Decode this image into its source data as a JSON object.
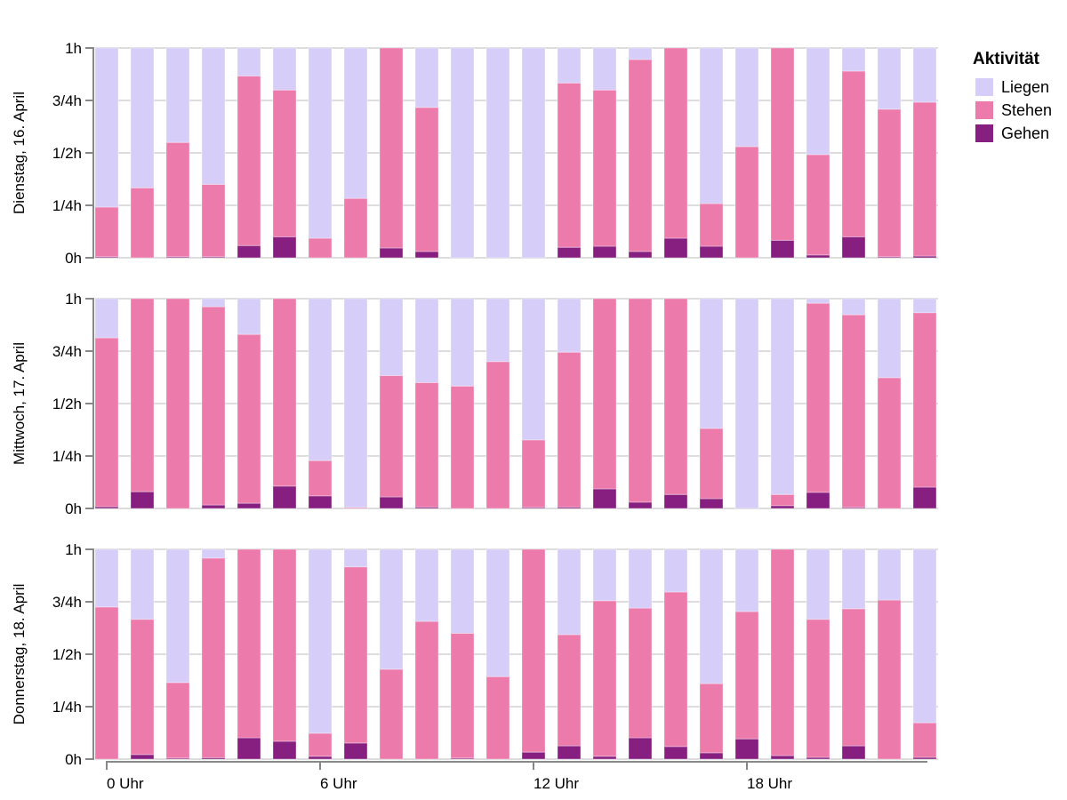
{
  "chart_data": {
    "type": "bar",
    "stacked": true,
    "unit": "minutes per hour",
    "x_field": "hour of day",
    "categories": [
      0,
      1,
      2,
      3,
      4,
      5,
      6,
      7,
      8,
      9,
      10,
      11,
      12,
      13,
      14,
      15,
      16,
      17,
      18,
      19,
      20,
      21,
      22,
      23
    ],
    "x_ticks": [
      {
        "value": 0,
        "label": "0 Uhr"
      },
      {
        "value": 6,
        "label": "6 Uhr"
      },
      {
        "value": 12,
        "label": "12 Uhr"
      },
      {
        "value": 18,
        "label": "18 Uhr"
      }
    ],
    "y_ticks": [
      {
        "value": 0,
        "label": "0h"
      },
      {
        "value": 15,
        "label": "1/4h"
      },
      {
        "value": 30,
        "label": "1/2h"
      },
      {
        "value": 45,
        "label": "3/4h"
      },
      {
        "value": 60,
        "label": "1h"
      }
    ],
    "ylim": [
      0,
      60
    ],
    "grid": true,
    "legend": {
      "title": "Aktivität",
      "position": "top-right",
      "entries": [
        {
          "name": "Liegen",
          "color": "#d6cdf8"
        },
        {
          "name": "Stehen",
          "color": "#ec7aab"
        },
        {
          "name": "Gehen",
          "color": "#871f80"
        }
      ]
    },
    "stack_order_bottom_to_top": [
      "Gehen",
      "Stehen",
      "Liegen"
    ],
    "panels": [
      {
        "title": "Dienstag, 16. April",
        "series": [
          {
            "name": "Gehen",
            "values": [
              0.3,
              0,
              0.3,
              0.3,
              3.5,
              6,
              0,
              0,
              2.8,
              1.8,
              0,
              0,
              0,
              3,
              3.3,
              1.8,
              5.6,
              3.3,
              0,
              5,
              0.8,
              6,
              0.3,
              0.5
            ]
          },
          {
            "name": "Stehen",
            "values": [
              14.2,
              20,
              32.7,
              20.7,
              48.5,
              42,
              5.6,
              17,
              57.2,
              41.2,
              0,
              0,
              0,
              47,
              44.7,
              54.9,
              54.4,
              12.2,
              31.8,
              55,
              28.7,
              47.4,
              42.2,
              44
            ]
          },
          {
            "name": "Liegen",
            "values": [
              45.5,
              40,
              27,
              39,
              8,
              12,
              54.4,
              43,
              0,
              17,
              60,
              60,
              60,
              10,
              12,
              3.3,
              0,
              44.5,
              28.2,
              0,
              30.5,
              6.6,
              17.5,
              15.5
            ]
          }
        ]
      },
      {
        "title": "Mittwoch, 17. April",
        "series": [
          {
            "name": "Gehen",
            "values": [
              0.5,
              4.8,
              0,
              1,
              1.5,
              6.4,
              3.6,
              0,
              3.3,
              0.4,
              0,
              0,
              0.3,
              0.4,
              5.6,
              1.8,
              4,
              2.8,
              0,
              0.8,
              4.6,
              0.3,
              0,
              6.1
            ]
          },
          {
            "name": "Stehen",
            "values": [
              48.3,
              55.2,
              60,
              56.7,
              48.3,
              53.6,
              10.1,
              0.3,
              34.7,
              35.6,
              35,
              42,
              19.3,
              44.3,
              54.4,
              58.2,
              56,
              20.1,
              0,
              3.2,
              54.1,
              55.1,
              37.4,
              49.9
            ]
          },
          {
            "name": "Liegen",
            "values": [
              11.2,
              0,
              0,
              2.3,
              10.2,
              0,
              46.3,
              59.7,
              22,
              24,
              25,
              18,
              40.4,
              15.3,
              0,
              0,
              0,
              37.1,
              60,
              56,
              1.3,
              4.6,
              22.6,
              4
            ]
          }
        ]
      },
      {
        "title": "Donnerstag, 18. April",
        "series": [
          {
            "name": "Gehen",
            "values": [
              0,
              1.3,
              0.3,
              0.4,
              6.1,
              5.1,
              0.8,
              4.6,
              0,
              0,
              0.3,
              0,
              2,
              3.8,
              0.8,
              6.1,
              3.6,
              1.8,
              5.8,
              1,
              0.5,
              3.8,
              0,
              0.5
            ]
          },
          {
            "name": "Stehen",
            "values": [
              43.5,
              38.7,
              21.6,
              57.1,
              53.9,
              54.9,
              6.6,
              50.4,
              25.7,
              39.4,
              35.7,
              23.6,
              58,
              31.8,
              44.5,
              37.1,
              44.2,
              19.8,
              36.4,
              59,
              39.5,
              39.2,
              45.5,
              9.9
            ]
          },
          {
            "name": "Liegen",
            "values": [
              16.5,
              20,
              38.1,
              2.5,
              0,
              0,
              52.6,
              5,
              34.3,
              20.6,
              24,
              36.4,
              0,
              24.4,
              14.7,
              16.8,
              12.2,
              38.4,
              17.8,
              0,
              20,
              17,
              14.5,
              49.6
            ]
          }
        ]
      }
    ]
  }
}
